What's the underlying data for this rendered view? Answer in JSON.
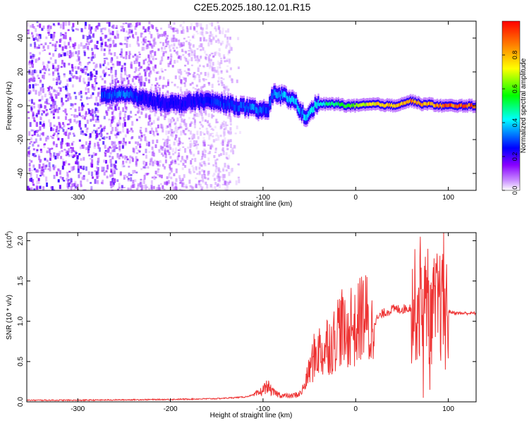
{
  "title": "C2E5.2025.180.12.01.R15",
  "colors": {
    "spectrogram_cmap": [
      "#ffffff",
      "#8800ff",
      "#0000ff",
      "#00ffff",
      "#00ff00",
      "#ffff00",
      "#ff8800",
      "#ff0000"
    ],
    "snr_line": "#ee3333"
  },
  "chart_data": [
    {
      "type": "heatmap",
      "title": "C2E5.2025.180.12.01.R15",
      "xlabel": "Height of straight line (km)",
      "ylabel": "Frequency (Hz)",
      "xlim": [
        -355,
        130
      ],
      "ylim": [
        -50,
        50
      ],
      "xticks": [
        -300,
        -200,
        -100,
        0,
        100
      ],
      "yticks": [
        -40,
        -20,
        0,
        20,
        40
      ],
      "colorbar": {
        "label": "Normalized spectral amplitude",
        "range": [
          0,
          1
        ],
        "ticks": [
          "0.0",
          "0.2",
          "0.4",
          "0.6",
          "0.8"
        ]
      },
      "ridge": {
        "x": [
          -270,
          -250,
          -230,
          -210,
          -190,
          -170,
          -150,
          -130,
          -110,
          -100,
          -95,
          -90,
          -85,
          -75,
          -65,
          -60,
          -55,
          -50,
          -45,
          -40,
          -30,
          -20,
          -10,
          0,
          20,
          40,
          60,
          70,
          80,
          90,
          100,
          110,
          130
        ],
        "freq": [
          6,
          7,
          4,
          2,
          1,
          3,
          2,
          0,
          -2,
          -3,
          -2,
          7,
          7,
          5,
          2,
          -4,
          -6,
          -5,
          0,
          1,
          1,
          1,
          0,
          0,
          1,
          0,
          3,
          1,
          1,
          0,
          0,
          0,
          0
        ],
        "amplitude": [
          0.3,
          0.35,
          0.25,
          0.25,
          0.25,
          0.25,
          0.3,
          0.3,
          0.35,
          0.3,
          0.3,
          0.35,
          0.4,
          0.4,
          0.4,
          0.35,
          0.4,
          0.4,
          0.45,
          0.45,
          0.5,
          0.55,
          0.6,
          0.7,
          0.8,
          0.85,
          0.85,
          0.85,
          0.85,
          0.9,
          0.95,
          0.95,
          0.95
        ]
      }
    },
    {
      "type": "line",
      "xlabel": "Height of straight line (km)",
      "ylabel": "SNR (10 * v/v)",
      "ylabel_scale": "(x10",
      "ylabel_scale_exp": "4",
      "ylabel_scale_close": ")",
      "xlim": [
        -355,
        130
      ],
      "ylim": [
        0,
        2.1
      ],
      "xticks": [
        -300,
        -200,
        -100,
        0,
        100
      ],
      "yticks": [
        0.0,
        0.5,
        1.0,
        1.5,
        2.0
      ],
      "series": [
        {
          "x": [
            -355,
            -300,
            -200,
            -150,
            -120,
            -105,
            -100,
            -95,
            -90,
            -80,
            -70,
            -60,
            -55,
            -50,
            -45,
            -40,
            -35,
            -30,
            -25,
            -20,
            -15,
            -10,
            -5,
            0,
            5,
            10,
            15,
            20,
            25,
            30,
            40,
            50,
            60,
            65,
            70,
            75,
            80,
            85,
            90,
            95,
            100,
            110,
            120,
            130
          ],
          "y": [
            0.02,
            0.02,
            0.03,
            0.04,
            0.06,
            0.1,
            0.15,
            0.2,
            0.12,
            0.08,
            0.07,
            0.1,
            0.2,
            0.4,
            0.55,
            0.65,
            0.6,
            0.75,
            0.7,
            0.9,
            0.95,
            0.75,
            1.0,
            0.85,
            1.05,
            1.1,
            0.8,
            1.0,
            1.05,
            1.1,
            1.15,
            1.15,
            1.17,
            1.2,
            1.15,
            1.2,
            1.1,
            1.15,
            1.2,
            1.15,
            1.12,
            1.1,
            1.1,
            1.1
          ]
        }
      ],
      "spikes": [
        {
          "x": 12,
          "y": 1.55
        },
        {
          "x": 70,
          "y": 2.05
        },
        {
          "x": 73,
          "y": 0.05
        },
        {
          "x": 78,
          "y": 1.9
        },
        {
          "x": 80,
          "y": 0.15
        },
        {
          "x": 95,
          "y": 2.1
        },
        {
          "x": 97,
          "y": 0.4
        }
      ]
    }
  ]
}
